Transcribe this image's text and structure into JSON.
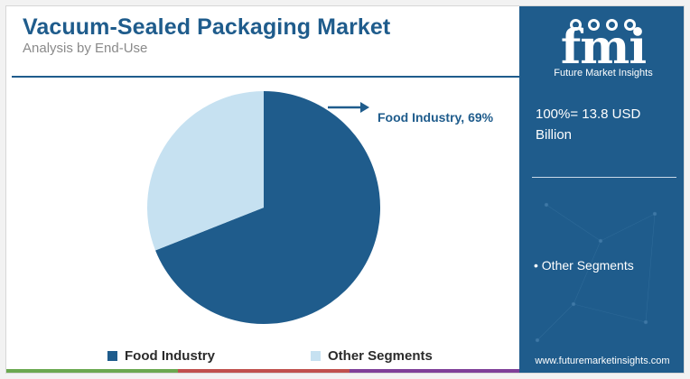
{
  "header": {
    "title": "Vacuum-Sealed Packaging Market",
    "subtitle": "Analysis by End-Use"
  },
  "chart_data": {
    "type": "pie",
    "title": "Vacuum-Sealed Packaging Market",
    "subtitle": "Analysis by End-Use",
    "slices": [
      {
        "label": "Food Industry",
        "value": 69,
        "color": "#1f5c8c"
      },
      {
        "label": "Other Segments",
        "value": 31,
        "color": "#c6e1f1"
      }
    ],
    "annotations": [
      {
        "text": "Food Industry, 69%"
      }
    ],
    "legend": {
      "position": "bottom",
      "entries": [
        "Food Industry",
        "Other Segments"
      ]
    }
  },
  "sidebar": {
    "logo_text": "fmi",
    "logo_caption": "Future Market Insights",
    "total_label": "100%= 13.8 USD Billion",
    "other_label": "• Other Segments",
    "website": "www.futuremarketinsights.com"
  },
  "colors": {
    "brand": "#1f5c8c",
    "light": "#c6e1f1",
    "strip": [
      "#6aa84f",
      "#c0504d",
      "#7f3f98",
      "#1f5c8c"
    ]
  }
}
